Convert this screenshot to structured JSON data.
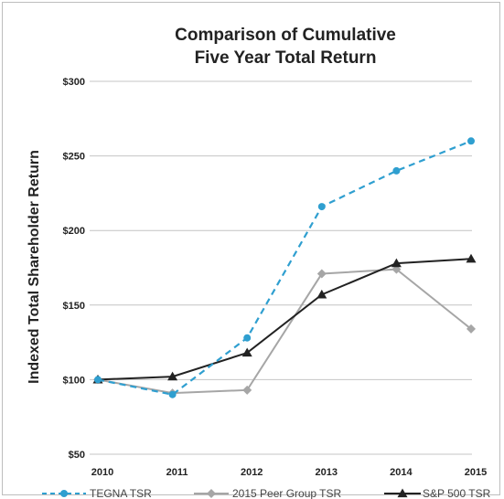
{
  "chart_data": {
    "type": "line",
    "title": [
      "Comparison of Cumulative",
      "Five Year Total Return"
    ],
    "ylabel": "Indexed Total Shareholder Return",
    "xlabel": "",
    "x": [
      "2010",
      "2011",
      "2012",
      "2013",
      "2014",
      "2015"
    ],
    "ylim": [
      50,
      300
    ],
    "yticks": [
      {
        "value": 300,
        "label": "$300"
      },
      {
        "value": 250,
        "label": "$250"
      },
      {
        "value": 200,
        "label": "$200"
      },
      {
        "value": 150,
        "label": "$150"
      },
      {
        "value": 100,
        "label": "$100"
      },
      {
        "value": 50,
        "label": "$50"
      }
    ],
    "grid": true,
    "legend_position": "bottom",
    "series": [
      {
        "name": "TEGNA TSR",
        "values": [
          100,
          90,
          128,
          216,
          240,
          260
        ],
        "color": "#2f9fd0",
        "dash": true,
        "marker": "circle"
      },
      {
        "name": "2015 Peer Group TSR",
        "values": [
          100,
          91,
          93,
          171,
          174,
          134
        ],
        "color": "#a6a6a6",
        "dash": false,
        "marker": "diamond"
      },
      {
        "name": "S&P 500 TSR",
        "values": [
          100,
          102,
          118,
          157,
          178,
          181
        ],
        "color": "#222222",
        "dash": false,
        "marker": "triangle"
      }
    ]
  }
}
